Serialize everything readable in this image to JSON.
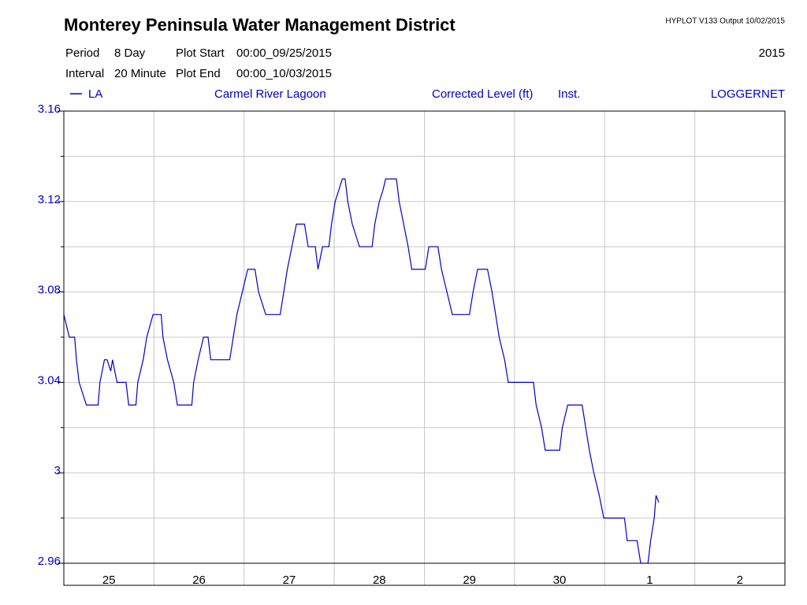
{
  "chart_data": {
    "type": "line",
    "title": "Monterey Peninsula Water Management District",
    "program": "HYPLOT V133  Output 10/02/2015",
    "year": "2015",
    "period_label": "Period",
    "period": "8 Day",
    "interval_label": "Interval",
    "interval": "20 Minute",
    "plot_start_label": "Plot Start",
    "plot_start": "00:00_09/25/2015",
    "plot_end_label": "Plot End",
    "plot_end": "00:00_10/03/2015",
    "site": "Carmel River Lagoon",
    "parameter": "Corrected Level (ft)",
    "stat": "Inst.",
    "source": "LOGGERNET",
    "categories": [
      "25",
      "26",
      "27",
      "28",
      "29",
      "30",
      "1",
      "2"
    ],
    "xlim": [
      0,
      8
    ],
    "ylim": [
      2.96,
      3.16
    ],
    "yticks": [
      2.96,
      3,
      3.04,
      3.08,
      3.12,
      3.16
    ],
    "minor_yticks": [
      2.98,
      3.02,
      3.06,
      3.1,
      3.14
    ],
    "grid": true,
    "series": [
      {
        "name": "LA",
        "color": "#0000c8",
        "x": [
          0,
          0.06,
          0.12,
          0.14,
          0.17,
          0.25,
          0.38,
          0.4,
          0.45,
          0.48,
          0.52,
          0.54,
          0.59,
          0.69,
          0.72,
          0.8,
          0.82,
          0.88,
          0.92,
          0.99,
          1.08,
          1.1,
          1.15,
          1.22,
          1.26,
          1.42,
          1.44,
          1.49,
          1.55,
          1.6,
          1.63,
          1.84,
          1.88,
          1.92,
          1.98,
          2.04,
          2.12,
          2.16,
          2.24,
          2.4,
          2.44,
          2.48,
          2.53,
          2.58,
          2.67,
          2.71,
          2.79,
          2.82,
          2.87,
          2.94,
          2.97,
          3.01,
          3.09,
          3.12,
          3.15,
          3.2,
          3.28,
          3.42,
          3.45,
          3.5,
          3.54,
          3.57,
          3.69,
          3.72,
          3.77,
          3.82,
          3.86,
          4.01,
          4.05,
          4.15,
          4.19,
          4.25,
          4.31,
          4.5,
          4.54,
          4.59,
          4.7,
          4.75,
          4.79,
          4.83,
          4.89,
          4.93,
          5.21,
          5.24,
          5.3,
          5.34,
          5.5,
          5.53,
          5.59,
          5.75,
          5.79,
          5.83,
          5.88,
          5.94,
          5.99,
          6.22,
          6.25,
          6.36,
          6.4,
          6.48,
          6.51,
          6.55,
          6.57,
          6.6
        ],
        "values": [
          3.07,
          3.06,
          3.06,
          3.05,
          3.04,
          3.03,
          3.03,
          3.04,
          3.05,
          3.05,
          3.045,
          3.05,
          3.04,
          3.04,
          3.03,
          3.03,
          3.04,
          3.05,
          3.06,
          3.07,
          3.07,
          3.06,
          3.05,
          3.04,
          3.03,
          3.03,
          3.04,
          3.05,
          3.06,
          3.06,
          3.05,
          3.05,
          3.06,
          3.07,
          3.08,
          3.09,
          3.09,
          3.08,
          3.07,
          3.07,
          3.08,
          3.09,
          3.1,
          3.11,
          3.11,
          3.1,
          3.1,
          3.09,
          3.1,
          3.1,
          3.11,
          3.12,
          3.13,
          3.13,
          3.12,
          3.11,
          3.1,
          3.1,
          3.11,
          3.12,
          3.125,
          3.13,
          3.13,
          3.12,
          3.11,
          3.1,
          3.09,
          3.09,
          3.1,
          3.1,
          3.09,
          3.08,
          3.07,
          3.07,
          3.08,
          3.09,
          3.09,
          3.08,
          3.07,
          3.06,
          3.05,
          3.04,
          3.04,
          3.03,
          3.02,
          3.01,
          3.01,
          3.02,
          3.03,
          3.03,
          3.02,
          3.01,
          3,
          2.99,
          2.98,
          2.98,
          2.97,
          2.97,
          2.96,
          2.96,
          2.97,
          2.98,
          2.99,
          2.987
        ]
      }
    ]
  }
}
